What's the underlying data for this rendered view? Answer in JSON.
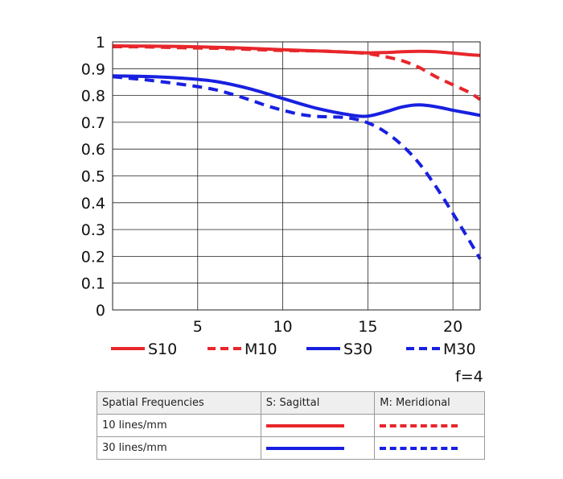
{
  "colors": {
    "s10": "#e8262b",
    "m10": "#e8262b",
    "s30": "#1820e0",
    "m30": "#1820e0"
  },
  "chart_data": {
    "type": "line",
    "xlim": [
      0,
      21.6
    ],
    "ylim": [
      0,
      1
    ],
    "grid": true,
    "x_ticks": [
      5,
      10,
      15,
      20
    ],
    "y_ticks": [
      0,
      0.1,
      0.2,
      0.3,
      0.4,
      0.5,
      0.6,
      0.7,
      0.8,
      0.9,
      1
    ],
    "y_tick_labels": [
      "0",
      "0.1",
      "0.2",
      "0.3",
      "0.4",
      "0.5",
      "0.6",
      "0.7",
      "0.8",
      "0.9",
      "1"
    ],
    "series": [
      {
        "name": "S10",
        "style": "solid",
        "color": "#e8262b",
        "x": [
          0,
          2,
          4,
          6,
          8,
          10,
          12,
          14,
          15,
          16,
          17,
          18,
          19,
          20,
          21,
          21.6
        ],
        "y": [
          0.985,
          0.984,
          0.983,
          0.98,
          0.976,
          0.971,
          0.966,
          0.961,
          0.959,
          0.96,
          0.963,
          0.965,
          0.963,
          0.958,
          0.952,
          0.95
        ]
      },
      {
        "name": "M10",
        "style": "dashed",
        "color": "#e8262b",
        "x": [
          0,
          2,
          4,
          6,
          8,
          10,
          12,
          13,
          14,
          15,
          16,
          17,
          18,
          19,
          20,
          21,
          21.6
        ],
        "y": [
          0.982,
          0.981,
          0.978,
          0.976,
          0.972,
          0.968,
          0.966,
          0.964,
          0.961,
          0.956,
          0.945,
          0.93,
          0.905,
          0.87,
          0.84,
          0.81,
          0.785
        ]
      },
      {
        "name": "S30",
        "style": "solid",
        "color": "#1820e0",
        "x": [
          0,
          2,
          4,
          6,
          8,
          10,
          12,
          14,
          15,
          16,
          17,
          18,
          19,
          20,
          21,
          21.6
        ],
        "y": [
          0.873,
          0.871,
          0.865,
          0.853,
          0.826,
          0.789,
          0.752,
          0.727,
          0.723,
          0.738,
          0.757,
          0.765,
          0.758,
          0.745,
          0.733,
          0.726
        ]
      },
      {
        "name": "M30",
        "style": "dashed",
        "color": "#1820e0",
        "x": [
          0,
          2,
          4,
          5,
          6,
          7,
          8,
          9,
          10,
          11,
          12,
          13,
          14,
          15,
          16,
          17,
          18,
          19,
          20,
          21,
          21.6
        ],
        "y": [
          0.87,
          0.858,
          0.842,
          0.833,
          0.822,
          0.805,
          0.785,
          0.763,
          0.745,
          0.73,
          0.722,
          0.72,
          0.715,
          0.698,
          0.665,
          0.615,
          0.548,
          0.46,
          0.36,
          0.255,
          0.19
        ]
      }
    ]
  },
  "legend": {
    "entries": [
      {
        "label": "S10",
        "style": "solid",
        "color": "#e8262b"
      },
      {
        "label": "M10",
        "style": "dashed",
        "color": "#e8262b"
      },
      {
        "label": "S30",
        "style": "solid",
        "color": "#1820e0"
      },
      {
        "label": "M30",
        "style": "dashed",
        "color": "#1820e0"
      }
    ]
  },
  "aperture": "f=4",
  "key_table": {
    "headers": [
      "Spatial Frequencies",
      "S: Sagittal",
      "M: Meridional"
    ],
    "rows": [
      {
        "label": "10 lines/mm",
        "color": "#e8262b"
      },
      {
        "label": "30 lines/mm",
        "color": "#1820e0"
      }
    ]
  }
}
